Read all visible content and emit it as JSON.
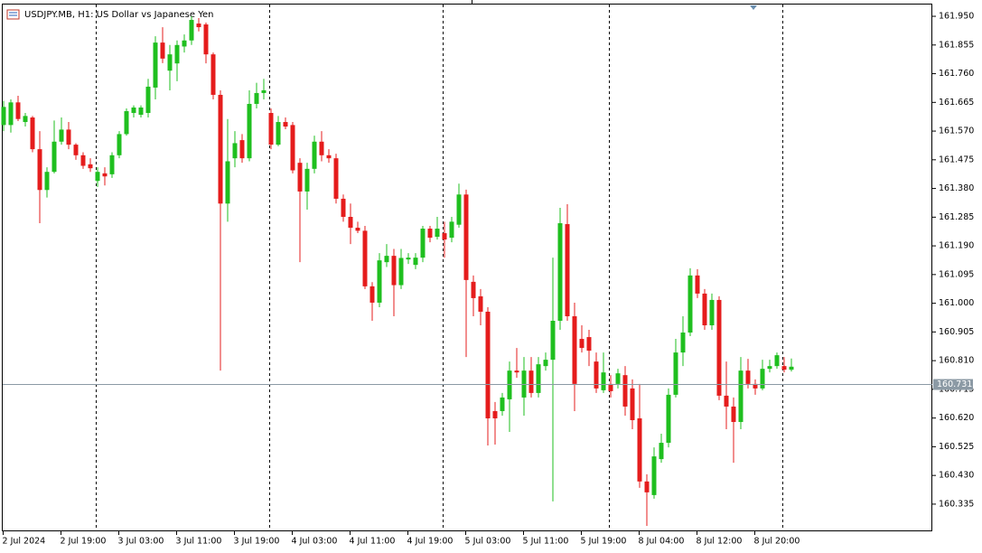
{
  "chart_data": {
    "type": "candlestick",
    "title": "USDJPY.MB, H1:  US Dollar vs Japanese Yen",
    "categories": [
      "2 Jul 2024",
      null,
      null,
      null,
      null,
      null,
      null,
      null,
      "2 Jul 19:00",
      null,
      null,
      null,
      null,
      null,
      null,
      null,
      "3 Jul 03:00",
      null,
      null,
      null,
      null,
      null,
      null,
      null,
      "3 Jul 11:00",
      null,
      null,
      null,
      null,
      null,
      null,
      null,
      "3 Jul 19:00",
      null,
      null,
      null,
      null,
      null,
      null,
      null,
      "4 Jul 03:00",
      null,
      null,
      null,
      null,
      null,
      null,
      null,
      "4 Jul 11:00",
      null,
      null,
      null,
      null,
      null,
      null,
      null,
      "4 Jul 19:00",
      null,
      null,
      null,
      null,
      null,
      null,
      null,
      "5 Jul 03:00",
      null,
      null,
      null,
      null,
      null,
      null,
      null,
      "5 Jul 11:00",
      null,
      null,
      null,
      null,
      null,
      null,
      null,
      "5 Jul 19:00",
      null,
      null,
      null,
      null,
      null,
      null,
      null,
      "8 Jul 04:00",
      null,
      null,
      null,
      null,
      null,
      null,
      null,
      "8 Jul 12:00",
      null,
      null,
      null,
      null,
      null,
      null,
      null,
      "8 Jul 20:00",
      null,
      null,
      null,
      null,
      null
    ],
    "open": [
      161.59,
      161.59,
      161.665,
      161.6,
      161.615,
      161.51,
      161.375,
      161.435,
      161.535,
      161.575,
      161.525,
      161.49,
      161.46,
      161.405,
      161.43,
      161.427,
      161.49,
      161.56,
      161.63,
      161.624,
      161.63,
      161.714,
      161.863,
      161.77,
      161.794,
      161.85,
      161.87,
      161.926,
      161.923,
      161.824,
      161.69,
      161.33,
      161.48,
      161.54,
      161.48,
      161.66,
      161.696,
      161.63,
      161.525,
      161.6,
      161.59,
      161.465,
      161.37,
      161.445,
      161.535,
      161.49,
      161.48,
      161.346,
      161.286,
      161.25,
      161.24,
      161.056,
      161.002,
      161.136,
      161.157,
      161.06,
      161.145,
      161.127,
      161.151,
      161.247,
      161.22,
      161.232,
      161.217,
      161.26,
      161.36,
      161.071,
      161.023,
      160.972,
      160.643,
      160.643,
      160.682,
      160.777,
      160.688,
      160.777,
      160.703,
      160.792,
      160.813,
      160.942,
      161.262,
      160.957,
      160.882,
      160.888,
      160.807,
      160.712,
      160.733,
      160.733,
      160.762,
      160.718,
      160.619,
      160.41,
      160.365,
      160.484,
      160.538,
      160.697,
      160.837,
      160.903,
      161.092,
      161.032,
      160.927,
      161.011,
      160.694,
      160.658,
      160.607,
      160.777,
      160.733,
      160.718,
      160.783,
      160.792,
      160.792,
      160.78
    ],
    "high": [
      161.67,
      161.675,
      161.687,
      161.63,
      161.62,
      161.57,
      161.45,
      161.605,
      161.615,
      161.6,
      161.53,
      161.5,
      161.48,
      161.45,
      161.45,
      161.5,
      161.57,
      161.645,
      161.655,
      161.655,
      161.743,
      161.884,
      161.914,
      161.855,
      161.87,
      161.89,
      161.95,
      161.944,
      161.929,
      161.83,
      161.705,
      161.61,
      161.57,
      161.56,
      161.705,
      161.73,
      161.743,
      161.645,
      161.62,
      161.615,
      161.6,
      161.48,
      161.465,
      161.555,
      161.57,
      161.51,
      161.495,
      161.36,
      161.33,
      161.27,
      161.256,
      161.07,
      161.166,
      161.196,
      161.18,
      161.18,
      161.166,
      161.166,
      161.256,
      161.256,
      161.286,
      161.27,
      161.286,
      161.396,
      161.376,
      161.092,
      161.047,
      160.987,
      160.673,
      160.703,
      160.807,
      160.852,
      160.822,
      160.822,
      160.822,
      160.837,
      161.151,
      161.316,
      161.328,
      161.002,
      160.927,
      160.912,
      160.837,
      160.837,
      160.762,
      160.783,
      160.792,
      160.748,
      160.733,
      160.434,
      160.523,
      160.568,
      160.718,
      160.882,
      160.957,
      161.116,
      161.113,
      161.047,
      161.032,
      161.023,
      160.807,
      160.688,
      160.822,
      160.816,
      160.748,
      160.813,
      160.813,
      160.837,
      160.822,
      160.817
    ],
    "low": [
      161.57,
      161.565,
      161.603,
      161.585,
      161.5,
      161.265,
      161.35,
      161.43,
      161.525,
      161.51,
      161.475,
      161.445,
      161.435,
      161.385,
      161.39,
      161.415,
      161.48,
      161.555,
      161.615,
      161.615,
      161.615,
      161.675,
      161.795,
      161.705,
      161.735,
      161.83,
      161.855,
      161.9,
      161.794,
      161.675,
      160.777,
      161.27,
      161.45,
      161.465,
      161.47,
      161.645,
      161.675,
      161.51,
      161.52,
      161.576,
      161.43,
      161.136,
      161.31,
      161.43,
      161.47,
      161.465,
      161.33,
      161.27,
      161.196,
      161.232,
      161.047,
      160.942,
      160.987,
      161.12,
      160.957,
      161.047,
      161.13,
      161.113,
      161.136,
      161.202,
      161.211,
      161.151,
      161.202,
      161.25,
      160.822,
      160.957,
      160.927,
      160.529,
      160.532,
      160.628,
      160.574,
      160.753,
      160.628,
      160.688,
      160.688,
      160.777,
      160.344,
      160.912,
      160.942,
      160.643,
      160.837,
      160.792,
      160.703,
      160.703,
      160.688,
      160.718,
      160.628,
      160.583,
      160.389,
      160.263,
      160.353,
      160.472,
      160.523,
      160.688,
      160.792,
      160.891,
      161.017,
      160.912,
      160.912,
      160.679,
      160.583,
      160.472,
      160.583,
      160.718,
      160.697,
      160.712,
      160.771,
      160.783,
      160.771,
      160.774
    ],
    "close": [
      161.65,
      161.665,
      161.61,
      161.62,
      161.51,
      161.375,
      161.435,
      161.535,
      161.575,
      161.525,
      161.49,
      161.455,
      161.447,
      161.435,
      161.42,
      161.49,
      161.56,
      161.636,
      161.648,
      161.648,
      161.717,
      161.863,
      161.81,
      161.824,
      161.855,
      161.87,
      161.938,
      161.914,
      161.824,
      161.69,
      161.33,
      161.47,
      161.53,
      161.48,
      161.66,
      161.696,
      161.705,
      161.525,
      161.6,
      161.585,
      161.44,
      161.37,
      161.445,
      161.535,
      161.49,
      161.48,
      161.346,
      161.286,
      161.25,
      161.24,
      161.056,
      161.002,
      161.142,
      161.157,
      161.06,
      161.15,
      161.151,
      161.151,
      161.247,
      161.217,
      161.247,
      161.211,
      161.27,
      161.36,
      161.077,
      161.017,
      160.972,
      160.619,
      160.619,
      160.688,
      160.777,
      160.771,
      160.777,
      160.703,
      160.798,
      160.813,
      160.942,
      161.265,
      160.957,
      160.733,
      160.852,
      160.843,
      160.718,
      160.771,
      160.709,
      160.768,
      160.658,
      160.613,
      160.41,
      160.374,
      160.493,
      160.538,
      160.697,
      160.837,
      160.903,
      161.092,
      161.032,
      160.927,
      161.011,
      160.694,
      160.658,
      160.607,
      160.777,
      160.733,
      160.718,
      160.783,
      160.792,
      160.828,
      160.78,
      160.79
    ],
    "up_color": "#1fbf1f",
    "down_color": "#e51c1c",
    "current_price": 160.731,
    "ylim": [
      160.245,
      161.989
    ],
    "yticks": [
      {
        "value": 161.95,
        "label": "161.950"
      },
      161.855,
      {
        "value": 161.76,
        "label": "161.760"
      },
      161.665,
      {
        "value": 161.57,
        "label": "161.570"
      },
      161.475,
      {
        "value": 161.38,
        "label": "161.380"
      },
      161.285,
      {
        "value": 161.19,
        "label": "161.190"
      },
      161.095,
      {
        "value": 161.0,
        "label": "161.000"
      },
      160.905,
      {
        "value": 160.81,
        "label": "160.810"
      },
      160.715,
      {
        "value": 160.62,
        "label": "160.620"
      },
      160.525,
      {
        "value": 160.43,
        "label": "160.430"
      },
      160.335
    ],
    "grid": false
  }
}
